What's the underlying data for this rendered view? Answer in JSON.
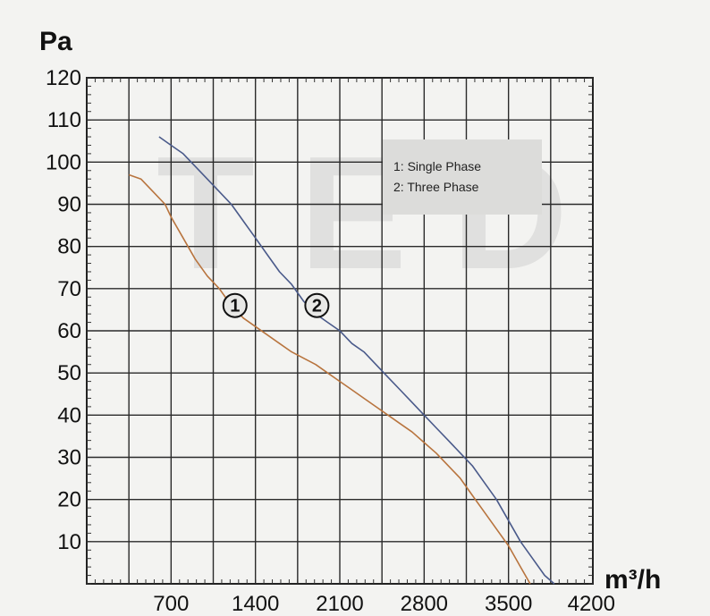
{
  "chart_data": {
    "type": "line",
    "ylabel": "Pa",
    "xlabel": "m³/h",
    "xlim": [
      0,
      4200
    ],
    "ylim": [
      0,
      120
    ],
    "xticks": [
      700,
      1400,
      2100,
      2800,
      3500,
      4200
    ],
    "xtick_labels": [
      "700",
      "1400",
      "2100",
      "2800",
      "3500",
      "4200"
    ],
    "yticks": [
      10,
      20,
      30,
      40,
      50,
      60,
      70,
      80,
      90,
      100,
      110,
      120
    ],
    "ytick_labels": [
      "10",
      "20",
      "30",
      "40",
      "50",
      "60",
      "70",
      "80",
      "90",
      "100",
      "110",
      "120"
    ],
    "grid": true,
    "legend": {
      "position": "top-right",
      "entries": [
        "1: Single Phase",
        "2: Three Phase"
      ]
    },
    "series": [
      {
        "name": "1: Single Phase",
        "marker_label": "1",
        "marker_at": [
          1230,
          66
        ],
        "color": "#b8743e",
        "x": [
          350,
          450,
          550,
          650,
          700,
          800,
          900,
          1000,
          1100,
          1200,
          1300,
          1400,
          1500,
          1600,
          1700,
          1800,
          1900,
          2000,
          2100,
          2200,
          2300,
          2400,
          2500,
          2600,
          2700,
          2800,
          2900,
          3000,
          3100,
          3200,
          3300,
          3400,
          3500,
          3600,
          3680
        ],
        "y": [
          97,
          96,
          93,
          90,
          87,
          82,
          77,
          73,
          70,
          66,
          63,
          61,
          59,
          57,
          55,
          53.5,
          52,
          50,
          48,
          46,
          44,
          42,
          40,
          38,
          36,
          33.5,
          31,
          28,
          25,
          21,
          17,
          13,
          9,
          4,
          0
        ]
      },
      {
        "name": "2: Three Phase",
        "marker_label": "2",
        "marker_at": [
          1910,
          66
        ],
        "color": "#4a5a8a",
        "x": [
          600,
          700,
          800,
          900,
          1000,
          1100,
          1200,
          1300,
          1400,
          1500,
          1600,
          1700,
          1800,
          1900,
          2000,
          2100,
          2200,
          2300,
          2400,
          2500,
          2600,
          2700,
          2800,
          2900,
          3000,
          3100,
          3200,
          3300,
          3400,
          3500,
          3600,
          3700,
          3800,
          3880
        ],
        "y": [
          106,
          104,
          102,
          99,
          96,
          93,
          90,
          86,
          82,
          78,
          74,
          71,
          67,
          64,
          62,
          60,
          57,
          55,
          52,
          49,
          46,
          43,
          40,
          37,
          34,
          31,
          28,
          24,
          20,
          15,
          10,
          6,
          2,
          0
        ]
      }
    ]
  }
}
